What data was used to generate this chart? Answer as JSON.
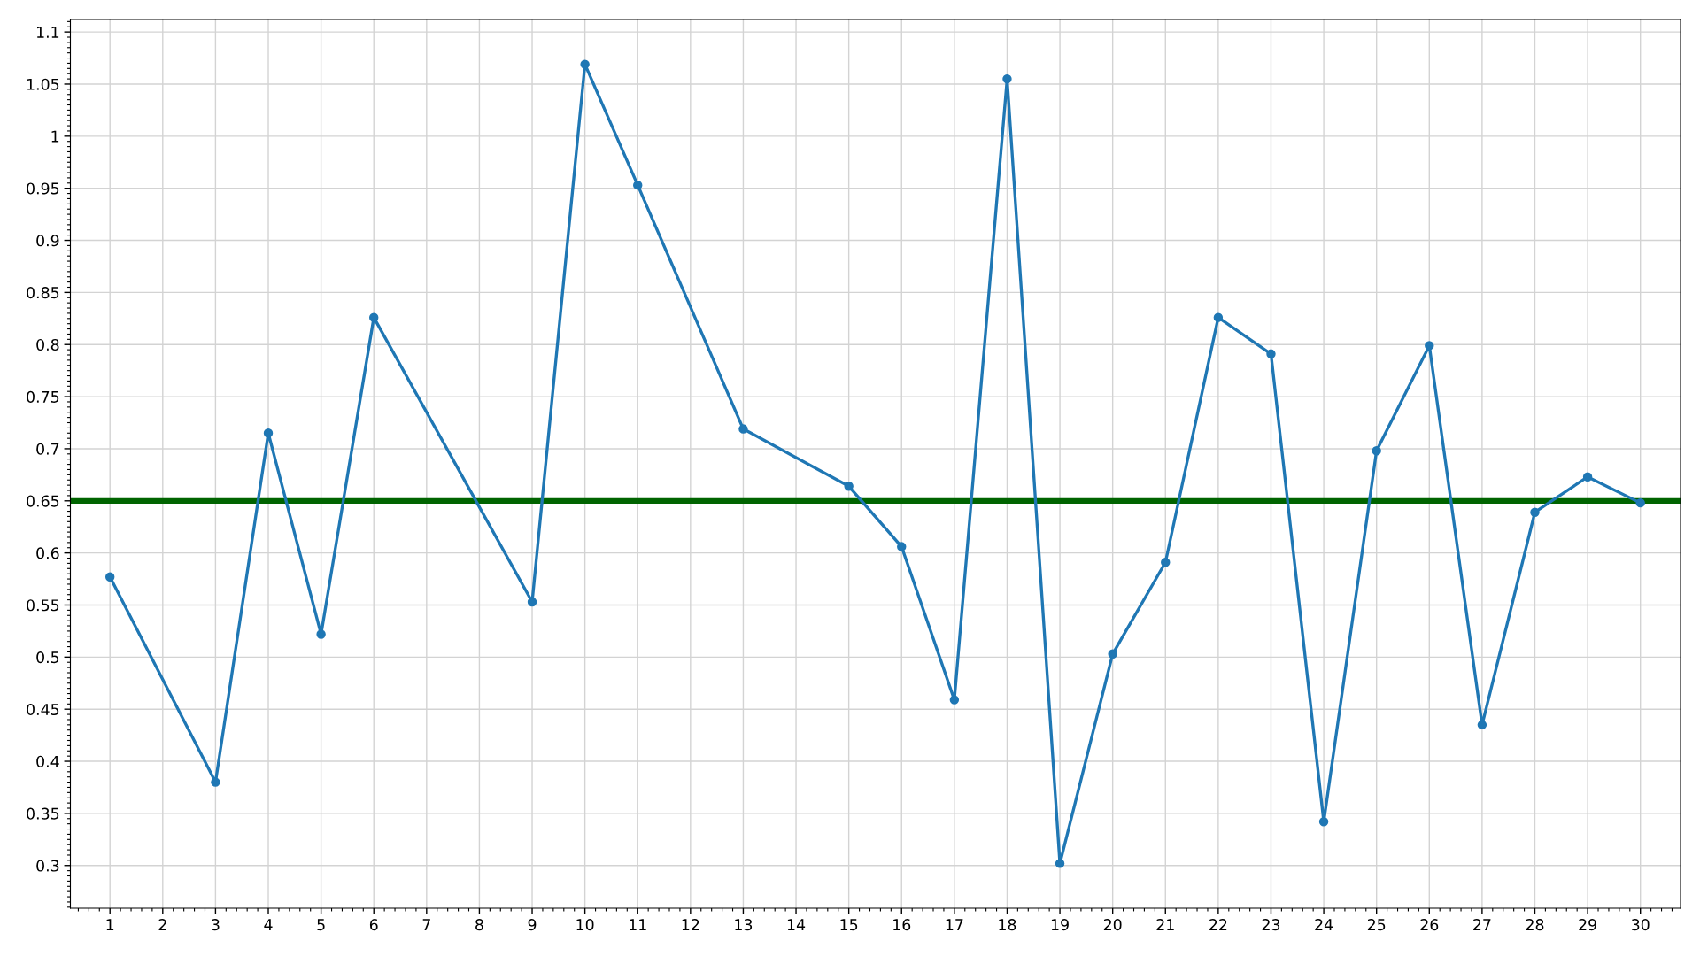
{
  "chart_data": {
    "type": "line",
    "x": [
      1,
      3,
      4,
      5,
      6,
      9,
      10,
      11,
      13,
      15,
      16,
      17,
      18,
      19,
      20,
      21,
      22,
      23,
      24,
      25,
      26,
      27,
      28,
      29,
      30
    ],
    "series": [
      {
        "color": "#1f77b4",
        "values": [
          0.577,
          0.38,
          0.715,
          0.522,
          0.826,
          0.553,
          1.069,
          0.953,
          0.719,
          0.664,
          0.606,
          0.459,
          1.055,
          0.302,
          0.503,
          0.591,
          0.826,
          0.791,
          0.342,
          0.698,
          0.799,
          0.435,
          0.639,
          0.673,
          0.648
        ]
      }
    ],
    "xlim": [
      0.25,
      30.76
    ],
    "ylim": [
      0.259,
      1.112
    ],
    "xticks": [
      1,
      2,
      3,
      4,
      5,
      6,
      7,
      8,
      9,
      10,
      11,
      12,
      13,
      14,
      15,
      16,
      17,
      18,
      19,
      20,
      21,
      22,
      23,
      24,
      25,
      26,
      27,
      28,
      29,
      30
    ],
    "yticks": [
      0.3,
      0.35,
      0.4,
      0.45,
      0.5,
      0.55,
      0.6,
      0.65,
      0.7,
      0.75,
      0.8,
      0.85,
      0.9,
      0.95,
      1,
      1.05,
      1.1
    ],
    "ref_lines": [
      {
        "axis": "y",
        "value": 0.65,
        "color": "#006400",
        "line_style": "solid"
      }
    ],
    "grid": true,
    "marker": "circle",
    "line_style": "solid"
  }
}
